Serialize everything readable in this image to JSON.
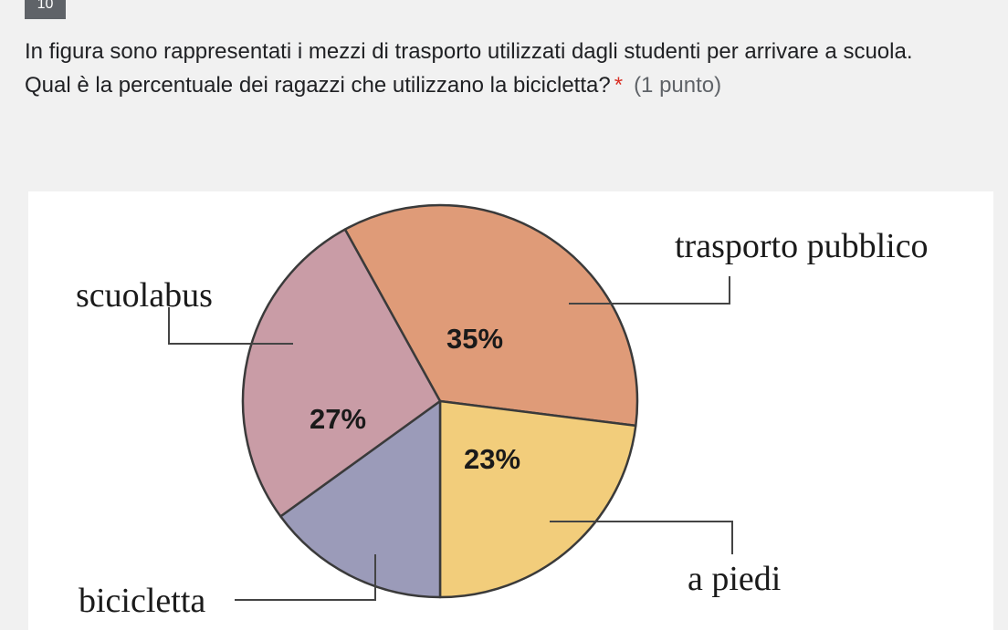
{
  "question": {
    "number": "10",
    "line1": "In figura sono rappresentati i mezzi di trasporto utilizzati dagli studenti per arrivare a scuola.",
    "line2": "Qual è la percentuale dei ragazzi che utilizzano la bicicletta?",
    "required_mark": "*",
    "points": "(1 punto)"
  },
  "chart_data": {
    "type": "pie",
    "title": "",
    "slices": [
      {
        "label": "trasporto pubblico",
        "value": 35,
        "value_label": "35%",
        "color": "#df9b78"
      },
      {
        "label": "a piedi",
        "value": 23,
        "value_label": "23%",
        "color": "#f2cd7b"
      },
      {
        "label": "bicicletta",
        "value": 15,
        "value_label": "",
        "color": "#9b9bb9"
      },
      {
        "label": "scuolabus",
        "value": 27,
        "value_label": "27%",
        "color": "#c99ca6"
      }
    ]
  }
}
